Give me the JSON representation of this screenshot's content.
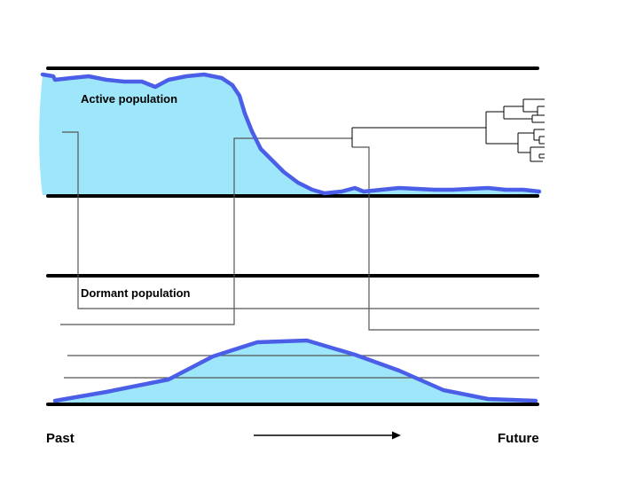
{
  "labels": {
    "active": "Active population",
    "dormant": "Dormant population",
    "past": "Past",
    "future": "Future"
  },
  "colors": {
    "fill": "#9ee7fb",
    "outline": "#4a5ee8",
    "lines": "#000000",
    "lineages": "#555555"
  },
  "icons": {
    "time_arrow": "arrow-right-icon"
  }
}
